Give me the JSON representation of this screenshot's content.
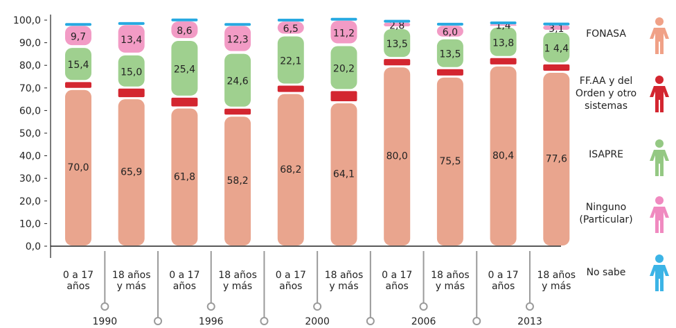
{
  "chart_data": {
    "type": "bar",
    "stacked": true,
    "categories": [
      "0 a 17 años",
      "18 años y más",
      "0 a 17 años",
      "18 años y más",
      "0 a 17 años",
      "18 años y más",
      "0 a 17 años",
      "18 años y más",
      "0 a 17 años",
      "18 años y más"
    ],
    "groups": [
      "1990",
      "1996",
      "2000",
      "2006",
      "2013"
    ],
    "group_of_category": [
      0,
      0,
      1,
      1,
      2,
      2,
      3,
      3,
      4,
      4
    ],
    "series": [
      {
        "name": "FONASA",
        "color": "#e9a58e",
        "values": [
          70.0,
          65.9,
          61.8,
          58.2,
          68.2,
          64.1,
          80.0,
          75.5,
          80.4,
          77.6
        ],
        "labels": [
          "70,0",
          "65,9",
          "61,8",
          "58,2",
          "68,2",
          "64,1",
          "80,0",
          "75,5",
          "80,4",
          "77,6"
        ]
      },
      {
        "name": "FF.AA y del Orden y otro sistemas",
        "color": "#d32630",
        "values": [
          2.6,
          3.8,
          3.9,
          2.6,
          2.8,
          4.5,
          2.8,
          2.8,
          2.8,
          2.8
        ],
        "labels": [
          "",
          "",
          "",
          "",
          "",
          "",
          "",
          "",
          "",
          ""
        ]
      },
      {
        "name": "ISAPRE",
        "color": "#9fd08f",
        "values": [
          15.4,
          15.0,
          25.4,
          24.6,
          22.1,
          20.2,
          13.5,
          13.5,
          13.8,
          14.4
        ],
        "labels": [
          "15,4",
          "15,0",
          "25,4",
          "24,6",
          "22,1",
          "20,2",
          "13,5",
          "13,5",
          "13,8",
          "1 4,4"
        ]
      },
      {
        "name": "Ninguno (Particular)",
        "color": "#f29bc5",
        "values": [
          9.7,
          13.4,
          8.6,
          12.3,
          6.5,
          11.2,
          2.8,
          6.0,
          1.4,
          3.1
        ],
        "labels": [
          "9,7",
          "13,4",
          "8,6",
          "12,3",
          "6,5",
          "11,2",
          "2,8",
          "6,0",
          "1,4",
          "3,1"
        ]
      },
      {
        "name": "No sabe",
        "color": "#27a9e1",
        "values": [
          1.0,
          1.0,
          1.0,
          1.0,
          1.0,
          1.0,
          1.0,
          1.0,
          1.0,
          1.0
        ],
        "labels": [
          "",
          "",
          "",
          "",
          "",
          "",
          "",
          "",
          "",
          ""
        ]
      }
    ],
    "ylim": [
      0,
      100
    ],
    "yticks": [
      "0,0",
      "10,0",
      "20,0",
      "30,0",
      "40,0",
      "50,0",
      "60,0",
      "70,0",
      "80,0",
      "90,0",
      "100,0"
    ],
    "xlabel": "",
    "ylabel": "",
    "title": "",
    "grid": false,
    "legend_placement": "right"
  },
  "legend": [
    {
      "label": "FONASA",
      "color": "#f0a187",
      "icon": "person-icon"
    },
    {
      "label": "FF.AA y del Orden y otro sistemas",
      "color": "#d32630",
      "icon": "person-icon"
    },
    {
      "label": "ISAPRE",
      "color": "#94c883",
      "icon": "person-icon"
    },
    {
      "label": "Ninguno (Particular)",
      "color": "#f08ac0",
      "icon": "person-icon"
    },
    {
      "label": "No sabe",
      "color": "#3cb4e6",
      "icon": "person-icon"
    }
  ]
}
